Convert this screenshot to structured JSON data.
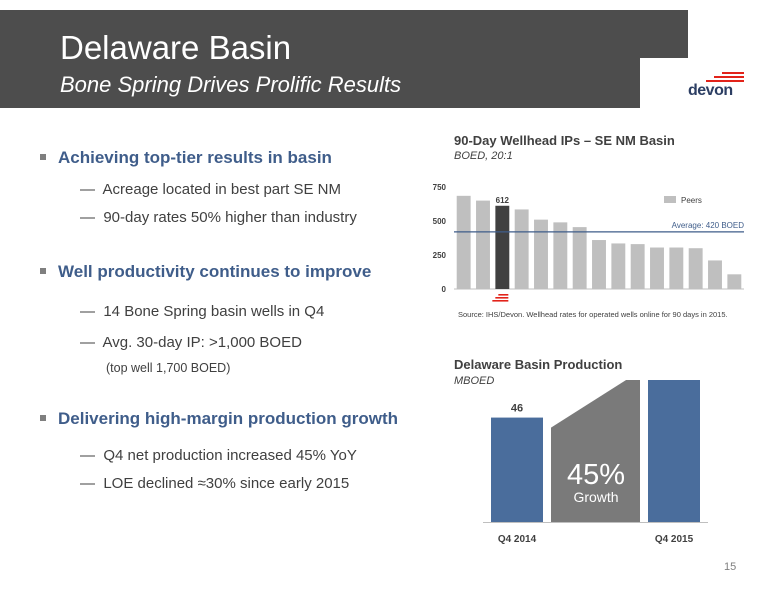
{
  "header": {
    "title": "Delaware Basin",
    "subtitle": "Bone Spring Drives Prolific Results",
    "logo_text": "devon"
  },
  "bullets": [
    {
      "label": "Achieving top-tier results in basin",
      "subs": [
        "Acreage located in best part SE NM",
        "90-day rates 50% higher than industry"
      ]
    },
    {
      "label": "Well productivity continues to improve",
      "subs": [
        "14 Bone Spring basin wells in Q4",
        "Avg. 30-day IP: >1,000 BOED"
      ],
      "note": "(top well 1,700 BOED)"
    },
    {
      "label": "Delivering high-margin production growth",
      "subs": [
        "Q4 net production increased 45% YoY",
        "LOE declined ≈30% since early 2015"
      ]
    }
  ],
  "dash": "—",
  "chart_data": [
    {
      "type": "bar",
      "title": "90-Day Wellhead IPs – SE NM Basin",
      "subtitle": "BOED, 20:1",
      "categories": [
        "",
        "",
        "",
        "",
        "",
        "",
        "",
        "",
        "",
        "",
        "",
        "",
        "",
        "",
        ""
      ],
      "values": [
        685,
        650,
        612,
        585,
        510,
        490,
        455,
        360,
        335,
        330,
        305,
        305,
        300,
        210,
        108
      ],
      "highlight_index": 2,
      "highlight_label": "612",
      "highlight_color": "#404040",
      "peer_color": "#bfbfbf",
      "ylim": [
        0,
        750
      ],
      "yticks": [
        "0",
        "250",
        "500",
        "750"
      ],
      "ytick_values": [
        0,
        250,
        500,
        750
      ],
      "legend": {
        "label": "Peers",
        "placement": "top-right"
      },
      "average": {
        "value": 420,
        "label": "Average: 420 BOED",
        "color": "#3f5d8a"
      },
      "source": "Source: IHS/Devon. Wellhead rates for operated wells online for 90 days in 2015."
    },
    {
      "type": "bar",
      "title": "Delaware Basin Production",
      "subtitle": "MBOED",
      "categories": [
        "Q4 2014",
        "Q4 2015"
      ],
      "values": [
        46,
        66
      ],
      "value_labels": [
        "46",
        "66"
      ],
      "ylim": [
        0,
        70
      ],
      "bar_color": "#4a6d9c",
      "growth_percent": "45%",
      "growth_label": "Growth",
      "growth_color": "#7a7a7a"
    }
  ],
  "page_number": "15",
  "colors": {
    "header_bg": "#4d4d4d",
    "accent_blue": "#3f5d8a",
    "logo_red": "#e2231a"
  }
}
